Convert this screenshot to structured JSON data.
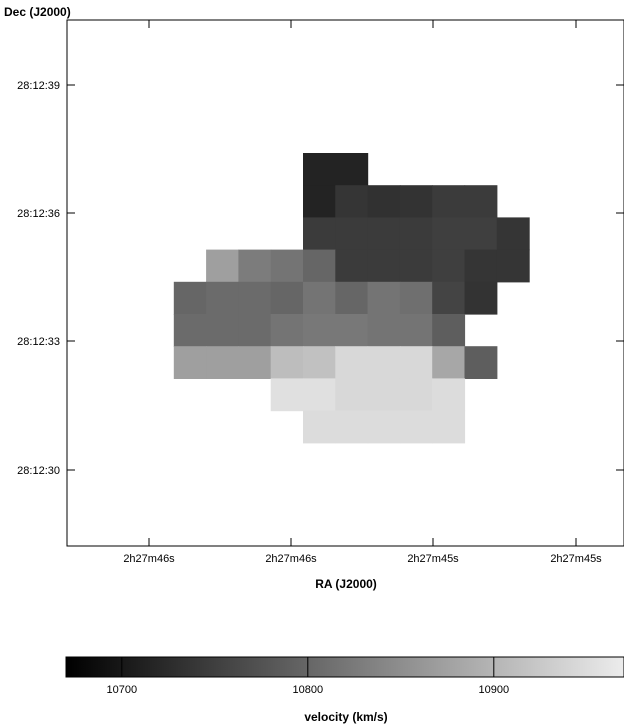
{
  "chart_data": {
    "type": "heatmap",
    "xlabel": "RA (J2000)",
    "ylabel": "Dec (J2000)",
    "x_ticks": [
      "2h27m46s",
      "2h27m46s",
      "2h27m45s",
      "2h27m45s"
    ],
    "y_ticks": [
      "28:12:39",
      "28:12:36",
      "28:12:33",
      "28:12:30"
    ],
    "colorbar": {
      "label": "velocity (km/s)",
      "ticks": [
        10700,
        10800,
        10900
      ],
      "range": [
        10670,
        10970
      ]
    },
    "grid_step_arcsec": 0.75,
    "cells": [
      {
        "dx": 0,
        "dy": 0,
        "v": 10714
      },
      {
        "dx": 1,
        "dy": 0,
        "v": 10714
      },
      {
        "dx": 0,
        "dy": 1,
        "v": 10714
      },
      {
        "dx": 1,
        "dy": 1,
        "v": 10738
      },
      {
        "dx": 2,
        "dy": 1,
        "v": 10732
      },
      {
        "dx": 3,
        "dy": 1,
        "v": 10735
      },
      {
        "dx": 4,
        "dy": 1,
        "v": 10745
      },
      {
        "dx": 5,
        "dy": 1,
        "v": 10745
      },
      {
        "dx": 0,
        "dy": 2,
        "v": 10745
      },
      {
        "dx": 1,
        "dy": 2,
        "v": 10745
      },
      {
        "dx": 2,
        "dy": 2,
        "v": 10745
      },
      {
        "dx": 3,
        "dy": 2,
        "v": 10745
      },
      {
        "dx": 4,
        "dy": 2,
        "v": 10750
      },
      {
        "dx": 5,
        "dy": 2,
        "v": 10750
      },
      {
        "dx": 6,
        "dy": 2,
        "v": 10738
      },
      {
        "dx": -3,
        "dy": 3,
        "v": 10872
      },
      {
        "dx": -2,
        "dy": 3,
        "v": 10828
      },
      {
        "dx": -1,
        "dy": 3,
        "v": 10817
      },
      {
        "dx": 0,
        "dy": 3,
        "v": 10800
      },
      {
        "dx": 1,
        "dy": 3,
        "v": 10745
      },
      {
        "dx": 2,
        "dy": 3,
        "v": 10745
      },
      {
        "dx": 3,
        "dy": 3,
        "v": 10745
      },
      {
        "dx": 4,
        "dy": 3,
        "v": 10750
      },
      {
        "dx": 5,
        "dy": 3,
        "v": 10738
      },
      {
        "dx": 6,
        "dy": 3,
        "v": 10738
      },
      {
        "dx": -4,
        "dy": 4,
        "v": 10800
      },
      {
        "dx": -3,
        "dy": 4,
        "v": 10806
      },
      {
        "dx": -2,
        "dy": 4,
        "v": 10806
      },
      {
        "dx": -1,
        "dy": 4,
        "v": 10800
      },
      {
        "dx": 0,
        "dy": 4,
        "v": 10817
      },
      {
        "dx": 1,
        "dy": 4,
        "v": 10800
      },
      {
        "dx": 2,
        "dy": 4,
        "v": 10817
      },
      {
        "dx": 3,
        "dy": 4,
        "v": 10811
      },
      {
        "dx": 4,
        "dy": 4,
        "v": 10756
      },
      {
        "dx": 5,
        "dy": 4,
        "v": 10735
      },
      {
        "dx": -4,
        "dy": 5,
        "v": 10806
      },
      {
        "dx": -3,
        "dy": 5,
        "v": 10806
      },
      {
        "dx": -2,
        "dy": 5,
        "v": 10806
      },
      {
        "dx": -1,
        "dy": 5,
        "v": 10817
      },
      {
        "dx": 0,
        "dy": 5,
        "v": 10822
      },
      {
        "dx": 1,
        "dy": 5,
        "v": 10822
      },
      {
        "dx": 2,
        "dy": 5,
        "v": 10817
      },
      {
        "dx": 3,
        "dy": 5,
        "v": 10817
      },
      {
        "dx": 4,
        "dy": 5,
        "v": 10790
      },
      {
        "dx": -4,
        "dy": 6,
        "v": 10872
      },
      {
        "dx": -3,
        "dy": 6,
        "v": 10872
      },
      {
        "dx": -2,
        "dy": 6,
        "v": 10872
      },
      {
        "dx": -1,
        "dy": 6,
        "v": 10910
      },
      {
        "dx": 0,
        "dy": 6,
        "v": 10915
      },
      {
        "dx": 1,
        "dy": 6,
        "v": 10945
      },
      {
        "dx": 2,
        "dy": 6,
        "v": 10945
      },
      {
        "dx": 3,
        "dy": 6,
        "v": 10945
      },
      {
        "dx": 4,
        "dy": 6,
        "v": 10882
      },
      {
        "dx": 5,
        "dy": 6,
        "v": 10790
      },
      {
        "dx": -1,
        "dy": 7,
        "v": 10955
      },
      {
        "dx": 0,
        "dy": 7,
        "v": 10955
      },
      {
        "dx": 1,
        "dy": 7,
        "v": 10945
      },
      {
        "dx": 2,
        "dy": 7,
        "v": 10945
      },
      {
        "dx": 3,
        "dy": 7,
        "v": 10945
      },
      {
        "dx": 4,
        "dy": 7,
        "v": 10950
      },
      {
        "dx": 0,
        "dy": 8,
        "v": 10950
      },
      {
        "dx": 1,
        "dy": 8,
        "v": 10950
      },
      {
        "dx": 2,
        "dy": 8,
        "v": 10950
      },
      {
        "dx": 3,
        "dy": 8,
        "v": 10950
      },
      {
        "dx": 4,
        "dy": 8,
        "v": 10950
      }
    ]
  }
}
